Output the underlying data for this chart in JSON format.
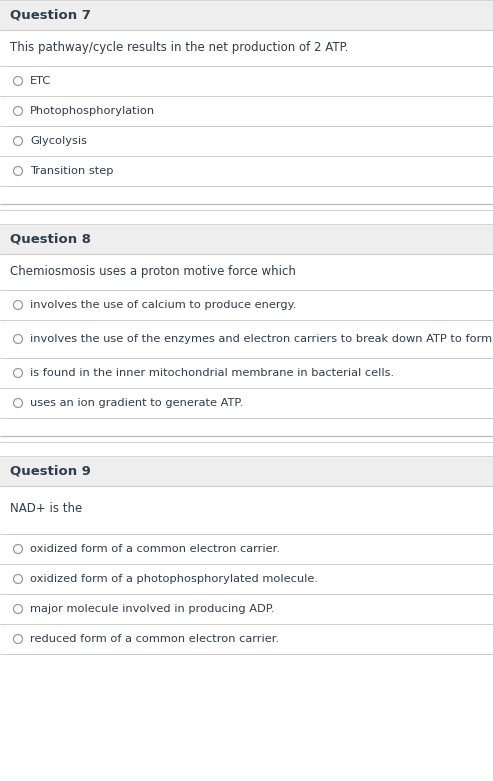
{
  "bg_color": "#ffffff",
  "header_bg": "#eeeeee",
  "divider_color": "#cccccc",
  "section_divider_color": "#bbbbbb",
  "text_color": "#2e3d4f",
  "radio_color": "#999999",
  "title_fontsize": 9.5,
  "body_fontsize": 8.5,
  "option_fontsize": 8.2,
  "fig_w": 4.93,
  "fig_h": 7.81,
  "dpi": 100,
  "questions": [
    {
      "title": "Question 7",
      "prompt": "This pathway/cycle results in the net production of 2 ATP.",
      "options": [
        "ETC",
        "Photophosphorylation",
        "Glycolysis",
        "Transition step"
      ]
    },
    {
      "title": "Question 8",
      "prompt": "Chemiosmosis uses a proton motive force which",
      "options": [
        "involves the use of calcium to produce energy.",
        "involves the use of the enzymes and electron carriers to break down ATP to form ADP.",
        "is found in the inner mitochondrial membrane in bacterial cells.",
        "uses an ion gradient to generate ATP."
      ]
    },
    {
      "title": "Question 9",
      "prompt": "NAD+ is the",
      "options": [
        "oxidized form of a common electron carrier.",
        "oxidized form of a photophosphorylated molecule.",
        "major molecule involved in producing ADP.",
        "reduced form of a common electron carrier."
      ]
    }
  ]
}
